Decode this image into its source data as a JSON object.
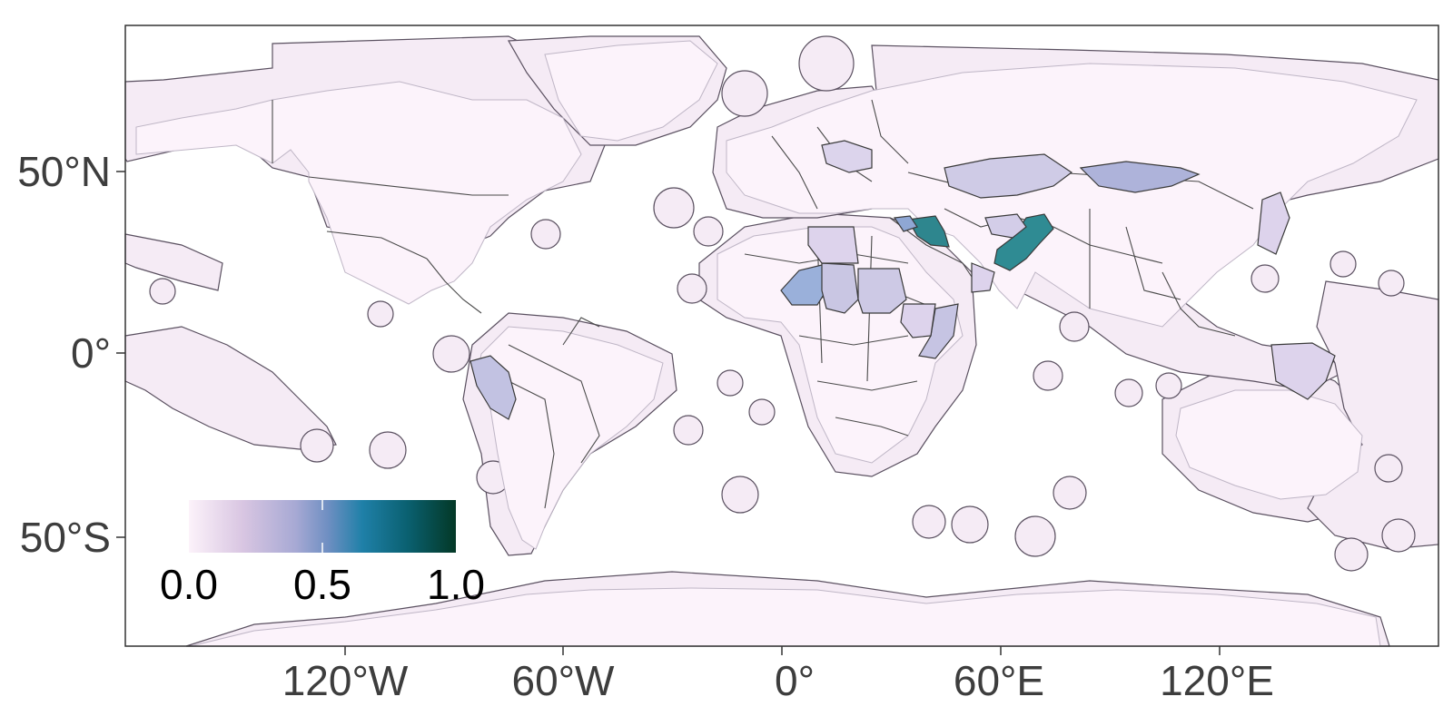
{
  "map": {
    "projection": "equirectangular",
    "x_ticks": [
      "120°W",
      "60°W",
      "0°",
      "60°E",
      "120°E"
    ],
    "y_ticks": [
      "50°N",
      "0°",
      "50°S"
    ],
    "legend": {
      "labels": [
        "0.0",
        "0.5",
        "1.0"
      ],
      "position": "bottom-left",
      "color_stops": [
        "#fcf2fa",
        "#d9c6e2",
        "#a7a9d4",
        "#6f8fc2",
        "#1f80a8",
        "#0a6070",
        "#033826"
      ]
    },
    "colors": {
      "land_base": "#fbf3fa",
      "eez_base": "#f6eaf6",
      "border": "#444444",
      "coastline_inner": "#c8c0cc",
      "frame": "#333333"
    },
    "highlighted_regions": [
      {
        "name": "Iraq",
        "value": 0.72,
        "color": "#2e868e"
      },
      {
        "name": "Pakistan",
        "value": 0.7,
        "color": "#2f8b93"
      },
      {
        "name": "Mongolia",
        "value": 0.3,
        "color": "#aeb3da"
      },
      {
        "name": "Kazakhstan",
        "value": 0.18,
        "color": "#cfcbe6"
      },
      {
        "name": "Niger",
        "value": 0.35,
        "color": "#9ab0da"
      },
      {
        "name": "Chad",
        "value": 0.2,
        "color": "#c9c6e3"
      },
      {
        "name": "Sudan",
        "value": 0.18,
        "color": "#cdc9e5"
      },
      {
        "name": "Peru",
        "value": 0.22,
        "color": "#c2c2e2"
      },
      {
        "name": "Somalia",
        "value": 0.22,
        "color": "#c6c4e3"
      },
      {
        "name": "Syria",
        "value": 0.4,
        "color": "#8fa7d4"
      },
      {
        "name": "Libya",
        "value": 0.12,
        "color": "#ddd3ec"
      },
      {
        "name": "Afghanistan",
        "value": 0.15,
        "color": "#d3cde8"
      }
    ]
  }
}
